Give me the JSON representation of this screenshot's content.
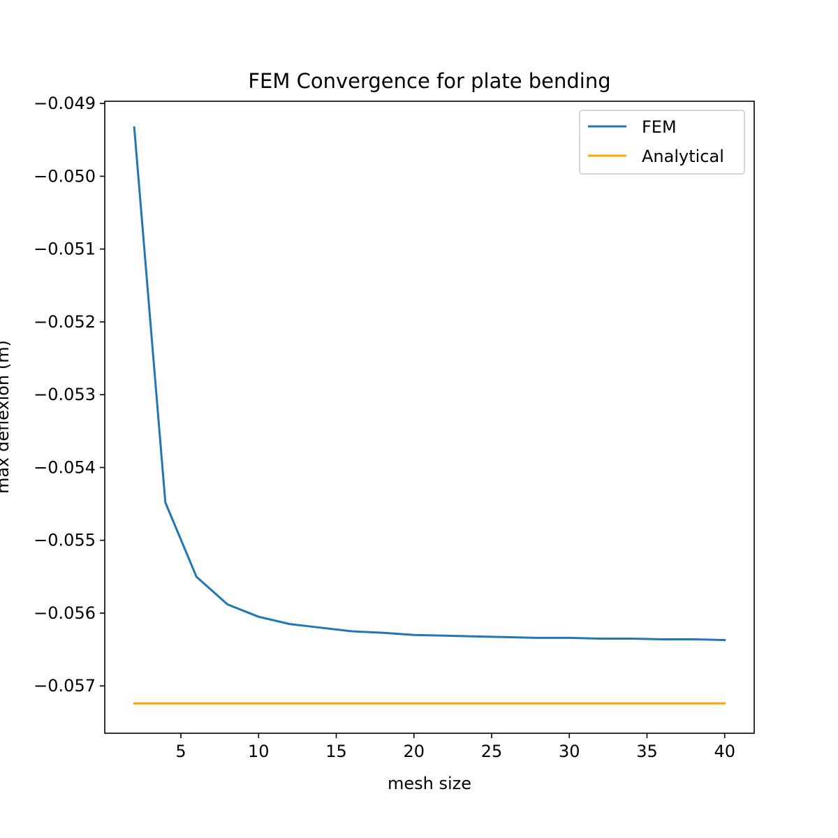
{
  "chart_data": {
    "type": "line",
    "title": "FEM Convergence for plate bending",
    "xlabel": "mesh size",
    "ylabel": "max deflexion (m)",
    "xlim": [
      0.1,
      41.9
    ],
    "ylim": [
      -0.05765,
      -0.04897
    ],
    "xticks": [
      5,
      10,
      15,
      20,
      25,
      30,
      35,
      40
    ],
    "xtick_labels": [
      "5",
      "10",
      "15",
      "20",
      "25",
      "30",
      "35",
      "40"
    ],
    "yticks": [
      -0.049,
      -0.05,
      -0.051,
      -0.052,
      -0.053,
      -0.054,
      -0.055,
      -0.056,
      -0.057
    ],
    "ytick_labels": [
      "−0.049",
      "−0.050",
      "−0.051",
      "−0.052",
      "−0.053",
      "−0.054",
      "−0.055",
      "−0.056",
      "−0.057"
    ],
    "grid": false,
    "legend_position": "upper right",
    "series": [
      {
        "name": "FEM",
        "color": "#1f77b4",
        "x": [
          2,
          4,
          6,
          8,
          10,
          12,
          14,
          16,
          18,
          20,
          22,
          24,
          26,
          28,
          30,
          32,
          34,
          36,
          38,
          40
        ],
        "y": [
          -0.04933,
          -0.05448,
          -0.0555,
          -0.05588,
          -0.05605,
          -0.05615,
          -0.0562,
          -0.05625,
          -0.05627,
          -0.0563,
          -0.05631,
          -0.05632,
          -0.05633,
          -0.05634,
          -0.05634,
          -0.05635,
          -0.05635,
          -0.05636,
          -0.05636,
          -0.05637
        ]
      },
      {
        "name": "Analytical",
        "color": "#ffa500",
        "x": [
          2,
          40
        ],
        "y": [
          -0.05724,
          -0.05724
        ]
      }
    ]
  }
}
